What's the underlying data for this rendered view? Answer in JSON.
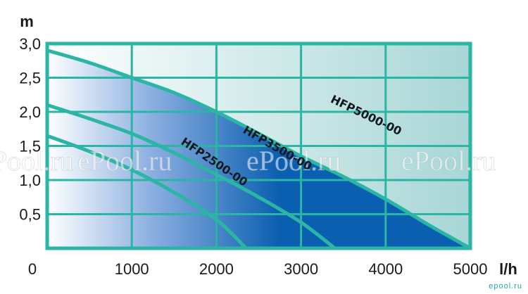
{
  "chart_data": {
    "type": "area",
    "x_unit": "l/h",
    "y_unit": "m",
    "xlim": [
      0,
      5000
    ],
    "ylim": [
      0,
      3.0
    ],
    "x_ticks": [
      "0",
      "1000",
      "2000",
      "3000",
      "4000",
      "5000"
    ],
    "y_ticks": [
      "0,5",
      "1,0",
      "1,5",
      "2,0",
      "2,5",
      "3,0"
    ],
    "grid": true,
    "series": [
      {
        "name": "HFP5000-00",
        "points": [
          [
            0,
            2.9
          ],
          [
            500,
            2.72
          ],
          [
            1000,
            2.5
          ],
          [
            1500,
            2.28
          ],
          [
            2000,
            2.0
          ],
          [
            2500,
            1.68
          ],
          [
            3000,
            1.35
          ],
          [
            3500,
            1.05
          ],
          [
            4000,
            0.72
          ],
          [
            4500,
            0.35
          ],
          [
            5000,
            0.0
          ]
        ]
      },
      {
        "name": "HFP3500-00",
        "points": [
          [
            0,
            2.1
          ],
          [
            500,
            1.9
          ],
          [
            1000,
            1.68
          ],
          [
            1500,
            1.4
          ],
          [
            2000,
            1.08
          ],
          [
            2500,
            0.75
          ],
          [
            3000,
            0.38
          ],
          [
            3400,
            0.0
          ]
        ]
      },
      {
        "name": "HFP2500-00",
        "points": [
          [
            0,
            1.65
          ],
          [
            500,
            1.42
          ],
          [
            1000,
            1.15
          ],
          [
            1500,
            0.82
          ],
          [
            2000,
            0.42
          ],
          [
            2350,
            0.0
          ]
        ]
      }
    ],
    "colors": {
      "frame": "#2bb5a5",
      "grid": "#2bb5a5",
      "dark_fill": "#0a5fb0",
      "light_fill": "#ffffff",
      "bg_left": "#ffffff",
      "bg_right": "#a8d6d6"
    }
  },
  "watermarks": [
    "ePool.ru",
    "ePool.ru",
    "ePool.ru",
    "ePool.ru"
  ],
  "corner_watermark": "epool.ru"
}
